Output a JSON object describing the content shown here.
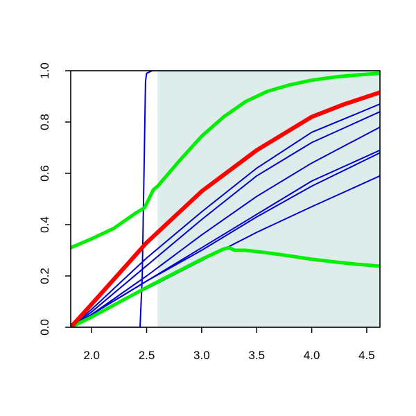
{
  "chart_data": {
    "type": "line",
    "title": "",
    "xlabel": "",
    "ylabel": "",
    "xlim": [
      1.81,
      4.62
    ],
    "ylim": [
      0.0,
      1.0
    ],
    "grid": false,
    "legend": "none",
    "x_ticks": [
      2.0,
      2.5,
      3.0,
      3.5,
      4.0,
      4.5
    ],
    "x_tick_labels": [
      "2.0",
      "2.5",
      "3.0",
      "3.5",
      "4.0",
      "4.5"
    ],
    "y_ticks": [
      0.0,
      0.2,
      0.4,
      0.6,
      0.8,
      1.0
    ],
    "y_tick_labels": [
      "0.0",
      "0.2",
      "0.4",
      "0.6",
      "0.8",
      "1.0"
    ],
    "shaded_region": {
      "x_start": 2.6,
      "x_end": 4.62,
      "color": "#deeceb"
    },
    "series": [
      {
        "color": "#0000cc",
        "width": 2,
        "x": [
          1.81,
          2.0,
          2.3,
          2.44,
          2.46,
          2.48,
          2.49,
          2.5,
          2.55,
          4.62
        ],
        "y": [
          0.0,
          0.0,
          0.0,
          0.0,
          0.2,
          0.7,
          0.96,
          0.99,
          1.0,
          1.0
        ]
      },
      {
        "color": "#0000cc",
        "width": 2,
        "x": [
          1.81,
          2.0,
          2.5,
          3.0,
          3.5,
          4.0,
          4.62
        ],
        "y": [
          0.0,
          0.07,
          0.27,
          0.45,
          0.62,
          0.76,
          0.87
        ]
      },
      {
        "color": "#0000cc",
        "width": 2,
        "x": [
          1.81,
          2.0,
          2.5,
          3.0,
          3.5,
          4.0,
          4.62
        ],
        "y": [
          0.0,
          0.06,
          0.24,
          0.42,
          0.59,
          0.72,
          0.84
        ]
      },
      {
        "color": "#0000cc",
        "width": 2,
        "x": [
          1.81,
          2.0,
          2.5,
          3.0,
          3.5,
          4.0,
          4.62
        ],
        "y": [
          0.0,
          0.05,
          0.2,
          0.36,
          0.51,
          0.64,
          0.78
        ]
      },
      {
        "color": "#0000cc",
        "width": 2,
        "x": [
          1.81,
          2.0,
          2.5,
          3.0,
          3.5,
          4.0,
          4.62
        ],
        "y": [
          0.0,
          0.05,
          0.18,
          0.31,
          0.44,
          0.57,
          0.69
        ]
      },
      {
        "color": "#0000cc",
        "width": 2,
        "x": [
          1.81,
          2.0,
          2.5,
          3.0,
          3.5,
          4.0,
          4.62
        ],
        "y": [
          0.0,
          0.05,
          0.18,
          0.3,
          0.43,
          0.55,
          0.68
        ]
      },
      {
        "color": "#0000cc",
        "width": 2,
        "x": [
          1.81,
          2.0,
          2.5,
          3.0,
          3.5,
          4.0,
          4.62
        ],
        "y": [
          0.0,
          0.04,
          0.15,
          0.26,
          0.37,
          0.47,
          0.59
        ]
      },
      {
        "color": "#00ee00",
        "width": 5,
        "x": [
          1.81,
          2.0,
          2.2,
          2.4,
          2.48,
          2.52,
          2.56,
          2.6,
          2.7,
          2.8,
          3.0,
          3.2,
          3.4,
          3.6,
          3.8,
          4.0,
          4.2,
          4.4,
          4.62
        ],
        "y": [
          0.31,
          0.345,
          0.385,
          0.445,
          0.465,
          0.5,
          0.535,
          0.55,
          0.6,
          0.65,
          0.745,
          0.82,
          0.88,
          0.92,
          0.945,
          0.963,
          0.975,
          0.983,
          0.99
        ]
      },
      {
        "color": "#00ee00",
        "width": 5,
        "x": [
          1.81,
          2.0,
          2.5,
          3.0,
          3.2,
          3.25,
          3.3,
          3.4,
          3.6,
          3.8,
          4.0,
          4.2,
          4.4,
          4.62
        ],
        "y": [
          0.0,
          0.04,
          0.155,
          0.265,
          0.305,
          0.31,
          0.3,
          0.3,
          0.29,
          0.278,
          0.265,
          0.255,
          0.246,
          0.238
        ]
      },
      {
        "color": "#ff0000",
        "width": 6,
        "x": [
          1.81,
          2.0,
          2.5,
          3.0,
          3.5,
          4.0,
          4.3,
          4.62
        ],
        "y": [
          0.0,
          0.09,
          0.33,
          0.53,
          0.69,
          0.82,
          0.87,
          0.915
        ]
      }
    ]
  }
}
